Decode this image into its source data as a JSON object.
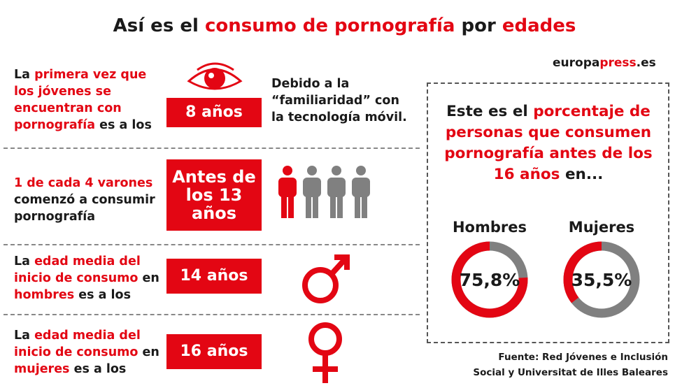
{
  "title": {
    "pre": "Así es el ",
    "hl1": "consumo de pornografía",
    "mid": " por ",
    "hl2": "edades"
  },
  "brand": {
    "pre": "europa",
    "hl": "press",
    "post": ".es"
  },
  "rows": [
    {
      "parts": [
        {
          "t": "La ",
          "red": false
        },
        {
          "t": "primera vez",
          "red": true
        },
        {
          "t": " que los jóvenes se encuentran con pornografía",
          "red": true
        },
        {
          "t": " es a los",
          "red": false
        }
      ],
      "box": "8 años",
      "note": "Debido a la “familiaridad” con la tecnología móvil.",
      "icon": "eye-icon"
    },
    {
      "parts": [
        {
          "t": "1 de cada 4 varones",
          "red": true
        },
        {
          "t": " comenzó a consumir pornografía",
          "red": false
        }
      ],
      "box": "Antes de los 13 años",
      "icon": "people-icon"
    },
    {
      "parts": [
        {
          "t": "La ",
          "red": false
        },
        {
          "t": "edad media del inicio de consumo",
          "red": true
        },
        {
          "t": " en ",
          "red": false
        },
        {
          "t": "hombres",
          "red": true
        },
        {
          "t": " es a los",
          "red": false
        }
      ],
      "box": "14 años",
      "icon": "male-symbol-icon"
    },
    {
      "parts": [
        {
          "t": "La ",
          "red": false
        },
        {
          "t": "edad media del inicio de consumo",
          "red": true
        },
        {
          "t": " en ",
          "red": false
        },
        {
          "t": "mujeres",
          "red": true
        },
        {
          "t": " es a los",
          "red": false
        }
      ],
      "box": "16 años",
      "icon": "female-symbol-icon"
    }
  ],
  "panel": {
    "pre": "Este es el ",
    "hl1": "porcentaje de personas que consumen pornografía antes de los 16 años",
    "post": " en..."
  },
  "chart_data": {
    "type": "pie",
    "series": [
      {
        "name": "Hombres",
        "value": 75.8,
        "label": "75,8%"
      },
      {
        "name": "Mujeres",
        "value": 35.5,
        "label": "35,5%"
      }
    ],
    "colors": {
      "value": "#e30613",
      "rest": "#808080"
    }
  },
  "source": {
    "line1": "Fuente: Red Jóvenes e Inclusión",
    "line2": "Social y Universitat de Illes Baleares"
  },
  "colors": {
    "accent": "#e30613",
    "grey": "#808080"
  }
}
